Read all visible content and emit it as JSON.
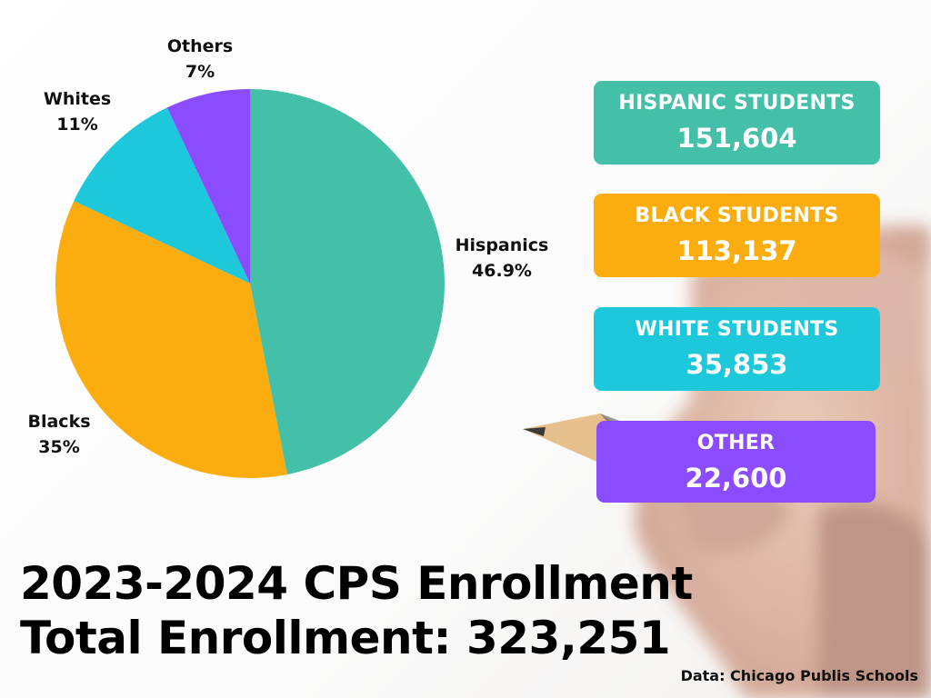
{
  "chart_data": {
    "type": "pie",
    "categories": [
      "Hispanics",
      "Blacks",
      "Whites",
      "Others"
    ],
    "values": [
      46.9,
      35,
      11,
      7
    ],
    "value_labels": [
      "46.9%",
      "35%",
      "11%",
      "7%"
    ],
    "colors": [
      "#43c0a7",
      "#fbad0f",
      "#1cc8d9",
      "#8b4cff"
    ],
    "start_angle": "12 o'clock",
    "direction": "clockwise"
  },
  "cards": [
    {
      "title": "HISPANIC STUDENTS",
      "value": "151,604",
      "color": "#43c0a7"
    },
    {
      "title": "BLACK STUDENTS",
      "value": "113,137",
      "color": "#fbad0f"
    },
    {
      "title": "WHITE STUDENTS",
      "value": "35,853",
      "color": "#1cc8d9"
    },
    {
      "title": "OTHER",
      "value": "22,600",
      "color": "#8b4cff"
    }
  ],
  "title": {
    "line1": "2023-2024 CPS Enrollment",
    "line2": "Total Enrollment: 323,251"
  },
  "source": "Data: Chicago Publis Schools"
}
